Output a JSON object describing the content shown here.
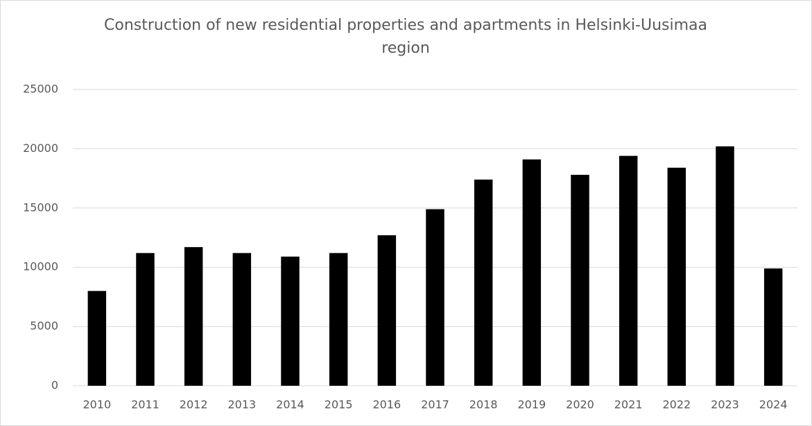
{
  "chart_data": {
    "type": "bar",
    "title": "Construction of new residential properties and apartments in Helsinki-Uusimaa region",
    "categories": [
      "2010",
      "2011",
      "2012",
      "2013",
      "2014",
      "2015",
      "2016",
      "2017",
      "2018",
      "2019",
      "2020",
      "2021",
      "2022",
      "2023",
      "2024"
    ],
    "values": [
      8000,
      11200,
      11700,
      11200,
      10900,
      11200,
      12700,
      14900,
      17400,
      19100,
      17800,
      19400,
      18400,
      20200,
      9900
    ],
    "color": "#000000",
    "ylim": [
      0,
      25000
    ],
    "yticks": [
      0,
      5000,
      10000,
      15000,
      20000,
      25000
    ],
    "grid": true
  }
}
